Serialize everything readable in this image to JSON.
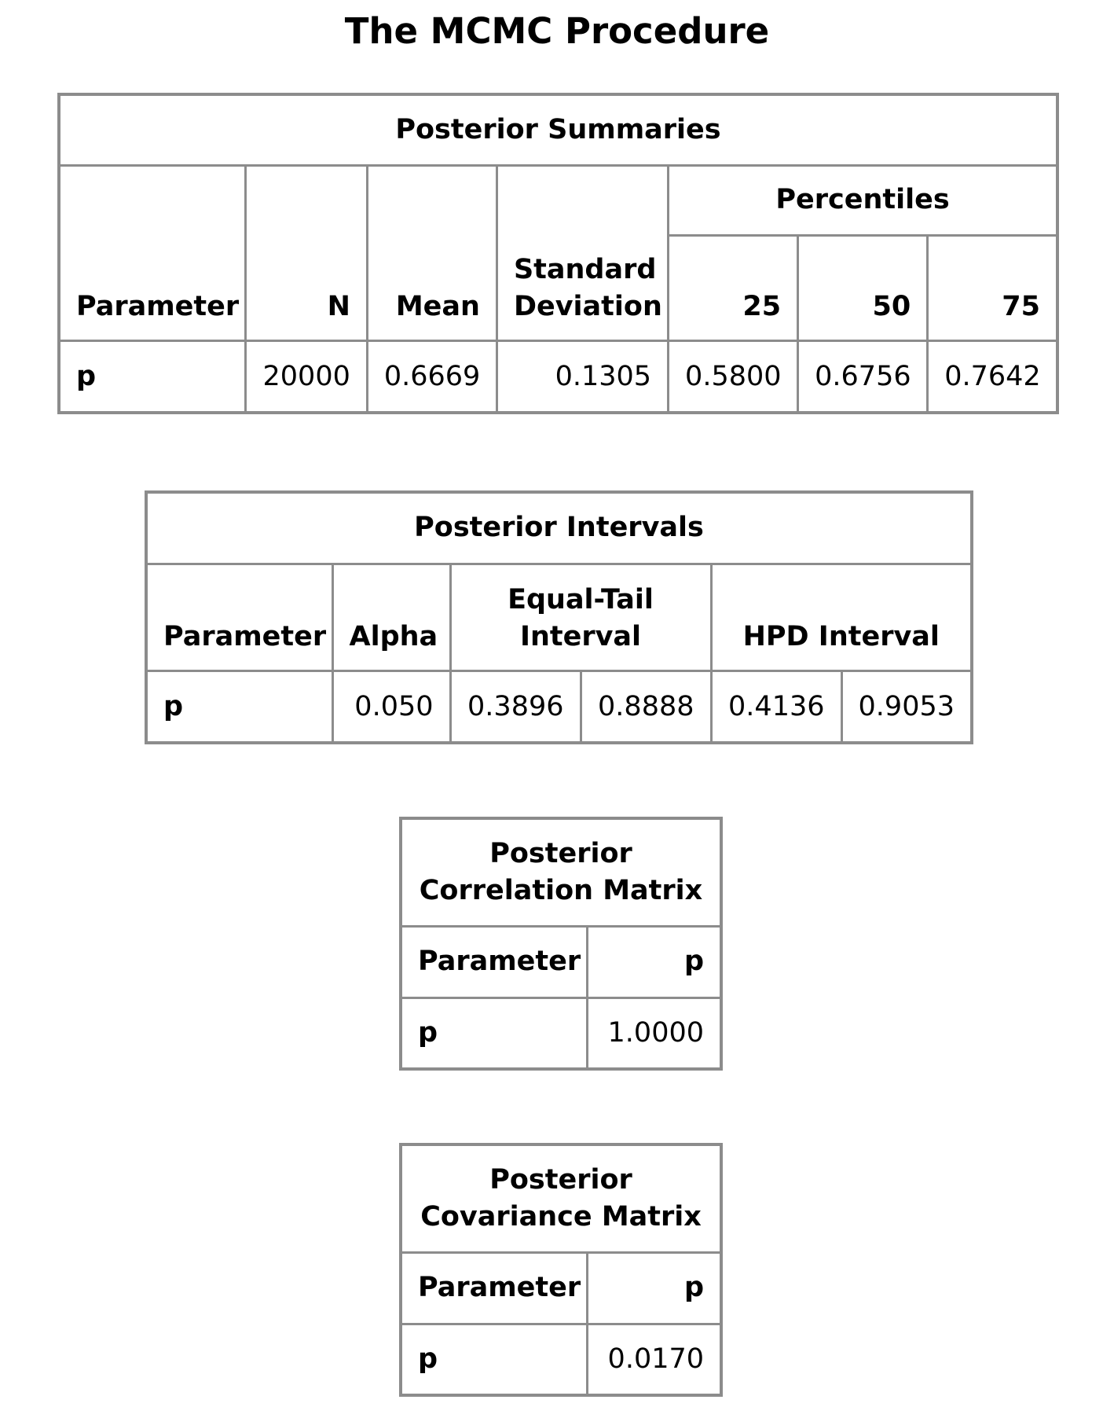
{
  "procedure_title": "The MCMC Procedure",
  "posterior_summaries": {
    "caption": "Posterior Summaries",
    "headers": {
      "parameter": "Parameter",
      "n": "N",
      "mean": "Mean",
      "std_line1": "Standard",
      "std_line2": "Deviation",
      "percentiles": "Percentiles",
      "p25": "25",
      "p50": "50",
      "p75": "75"
    },
    "rows": [
      {
        "parameter": "p",
        "n": "20000",
        "mean": "0.6669",
        "std": "0.1305",
        "p25": "0.5800",
        "p50": "0.6756",
        "p75": "0.7642"
      }
    ]
  },
  "posterior_intervals": {
    "caption": "Posterior Intervals",
    "headers": {
      "parameter": "Parameter",
      "alpha": "Alpha",
      "equal_tail_line1": "Equal-Tail",
      "equal_tail_line2": "Interval",
      "hpd": "HPD Interval"
    },
    "rows": [
      {
        "parameter": "p",
        "alpha": "0.050",
        "et_lower": "0.3896",
        "et_upper": "0.8888",
        "hpd_lower": "0.4136",
        "hpd_upper": "0.9053"
      }
    ]
  },
  "posterior_correlation": {
    "caption_line1": "Posterior",
    "caption_line2": "Correlation Matrix",
    "headers": {
      "parameter": "Parameter",
      "p": "p"
    },
    "rows": [
      {
        "parameter": "p",
        "p": "1.0000"
      }
    ]
  },
  "posterior_covariance": {
    "caption_line1": "Posterior",
    "caption_line2": "Covariance Matrix",
    "headers": {
      "parameter": "Parameter",
      "p": "p"
    },
    "rows": [
      {
        "parameter": "p",
        "p": "0.0170"
      }
    ]
  },
  "colors": {
    "border": "#8c8c8c",
    "text": "#000000",
    "background": "#ffffff"
  }
}
